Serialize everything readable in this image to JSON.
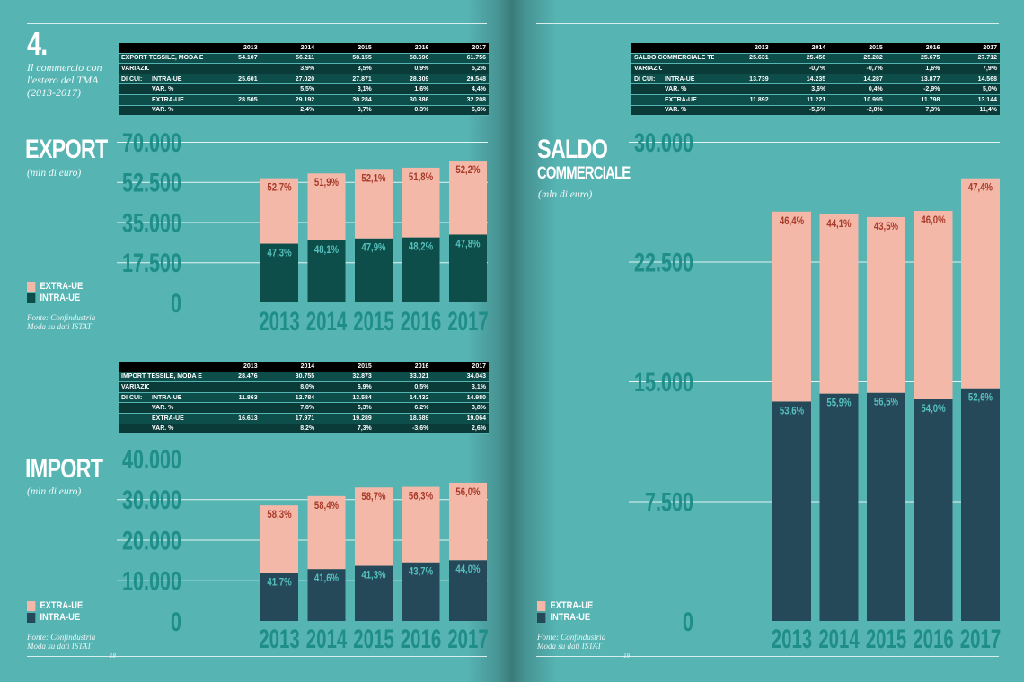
{
  "colors": {
    "extra": "#f4b8a8",
    "intra_export": "#0d4d4a",
    "intra_other": "#26495a",
    "tick": "#1f8e88",
    "pct_extra": "#a83a2a",
    "pct_intra": "#56c0bd"
  },
  "header": {
    "number": "4.",
    "intro": "Il commercio con l'estero del TMA (2013-2017)"
  },
  "page_numbers": {
    "left": "18",
    "right": "19"
  },
  "export": {
    "title": "EXPORT",
    "subtitle": "(mln di euro)",
    "legend": [
      "EXTRA-UE",
      "INTRA-UE"
    ],
    "source": [
      "Fonte: Confindustria",
      "Moda su dati ISTAT"
    ],
    "table": {
      "years": [
        "2013",
        "2014",
        "2015",
        "2016",
        "2017"
      ],
      "rows": [
        {
          "c1": "EXPORT TESSILE, MODA E ACCESSORIO",
          "c2": "",
          "values": [
            "54.107",
            "56.211",
            "58.155",
            "58.696",
            "61.756"
          ]
        },
        {
          "c1": "VARIAZIONE %",
          "c2": "",
          "values": [
            "",
            "3,9%",
            "3,5%",
            "0,9%",
            "5,2%"
          ]
        },
        {
          "c1": "DI CUI:",
          "c2": "INTRA-UE",
          "values": [
            "25.601",
            "27.020",
            "27.871",
            "28.309",
            "29.548"
          ]
        },
        {
          "c1": "",
          "c2": "VAR. %",
          "values": [
            "",
            "5,5%",
            "3,1%",
            "1,6%",
            "4,4%"
          ]
        },
        {
          "c1": "",
          "c2": "EXTRA-UE",
          "values": [
            "28.505",
            "29.192",
            "30.284",
            "30.386",
            "32.208"
          ]
        },
        {
          "c1": "",
          "c2": "VAR. %",
          "values": [
            "",
            "2,4%",
            "3,7%",
            "0,3%",
            "6,0%"
          ]
        }
      ]
    }
  },
  "import": {
    "title": "IMPORT",
    "subtitle": "(mln di euro)",
    "legend": [
      "EXTRA-UE",
      "INTRA-UE"
    ],
    "source": [
      "Fonte: Confindustria",
      "Moda su dati ISTAT"
    ],
    "table": {
      "years": [
        "2013",
        "2014",
        "2015",
        "2016",
        "2017"
      ],
      "rows": [
        {
          "c1": "IMPORT TESSILE, MODA E ACCESSORIO",
          "c2": "",
          "values": [
            "28.476",
            "30.755",
            "32.873",
            "33.021",
            "34.043"
          ]
        },
        {
          "c1": "VARIAZIONE %",
          "c2": "",
          "values": [
            "",
            "8,0%",
            "6,9%",
            "0,5%",
            "3,1%"
          ]
        },
        {
          "c1": "DI CUI:",
          "c2": "INTRA-UE",
          "values": [
            "11.863",
            "12.784",
            "13.584",
            "14.432",
            "14.980"
          ]
        },
        {
          "c1": "",
          "c2": "VAR. %",
          "values": [
            "",
            "7,8%",
            "6,3%",
            "6,2%",
            "3,8%"
          ]
        },
        {
          "c1": "",
          "c2": "EXTRA-UE",
          "values": [
            "16.613",
            "17.971",
            "19.289",
            "18.589",
            "19.064"
          ]
        },
        {
          "c1": "",
          "c2": "VAR. %",
          "values": [
            "",
            "8,2%",
            "7,3%",
            "-3,6%",
            "2,6%"
          ]
        }
      ]
    }
  },
  "saldo": {
    "title_line1": "SALDO",
    "title_line2": "COMMERCIALE",
    "subtitle": "(mln di euro)",
    "legend": [
      "EXTRA-UE",
      "INTRA-UE"
    ],
    "source": [
      "Fonte: Confindustria",
      "Moda su dati ISTAT"
    ],
    "table": {
      "years": [
        "2013",
        "2014",
        "2015",
        "2016",
        "2017"
      ],
      "rows": [
        {
          "c1": "SALDO COMMERCIALE TESSILE, MODA E ACCESSORIO",
          "c2": "",
          "values": [
            "25.631",
            "25.456",
            "25.282",
            "25.675",
            "27.712"
          ]
        },
        {
          "c1": "VARIAZIONE %",
          "c2": "",
          "values": [
            "",
            "-0,7%",
            "-0,7%",
            "1,6%",
            "7,9%"
          ]
        },
        {
          "c1": "DI CUI:",
          "c2": "INTRA-UE",
          "values": [
            "13.739",
            "14.235",
            "14.287",
            "13.877",
            "14.568"
          ]
        },
        {
          "c1": "",
          "c2": "VAR. %",
          "values": [
            "",
            "3,6%",
            "0,4%",
            "-2,9%",
            "5,0%"
          ]
        },
        {
          "c1": "",
          "c2": "EXTRA-UE",
          "values": [
            "11.892",
            "11.221",
            "10.995",
            "11.798",
            "13.144"
          ]
        },
        {
          "c1": "",
          "c2": "VAR. %",
          "values": [
            "",
            "-5,6%",
            "-2,0%",
            "7,3%",
            "11,4%"
          ]
        }
      ]
    }
  },
  "chart_data": [
    {
      "type": "bar",
      "stacked": true,
      "categories": [
        "2013",
        "2014",
        "2015",
        "2016",
        "2017"
      ],
      "ylim": [
        0,
        70000
      ],
      "yticks": [
        "0",
        "17.500",
        "35.000",
        "52.500",
        "70.000"
      ],
      "yticks_values": [
        0,
        17500,
        35000,
        52500,
        70000
      ],
      "series": [
        {
          "name": "INTRA-UE",
          "values": [
            25601,
            27020,
            27871,
            28309,
            29548
          ],
          "labels": [
            "47,3%",
            "48,1%",
            "47,9%",
            "48,2%",
            "47,8%"
          ]
        },
        {
          "name": "EXTRA-UE",
          "values": [
            28505,
            29192,
            30284,
            30386,
            32208
          ],
          "labels": [
            "52,7%",
            "51,9%",
            "52,1%",
            "51,8%",
            "52,2%"
          ]
        }
      ]
    },
    {
      "type": "bar",
      "stacked": true,
      "categories": [
        "2013",
        "2014",
        "2015",
        "2016",
        "2017"
      ],
      "ylim": [
        0,
        40000
      ],
      "yticks": [
        "0",
        "10.000",
        "20.000",
        "30.000",
        "40.000"
      ],
      "yticks_values": [
        0,
        10000,
        20000,
        30000,
        40000
      ],
      "series": [
        {
          "name": "INTRA-UE",
          "values": [
            11863,
            12784,
            13584,
            14432,
            14980
          ],
          "labels": [
            "41,7%",
            "41,6%",
            "41,3%",
            "43,7%",
            "44,0%"
          ]
        },
        {
          "name": "EXTRA-UE",
          "values": [
            16613,
            17971,
            19289,
            18589,
            19064
          ],
          "labels": [
            "58,3%",
            "58,4%",
            "58,7%",
            "56,3%",
            "56,0%"
          ]
        }
      ]
    },
    {
      "type": "bar",
      "stacked": true,
      "categories": [
        "2013",
        "2014",
        "2015",
        "2016",
        "2017"
      ],
      "ylim": [
        0,
        30000
      ],
      "yticks": [
        "0",
        "7.500",
        "15.000",
        "22.500",
        "30.000"
      ],
      "yticks_values": [
        0,
        7500,
        15000,
        22500,
        30000
      ],
      "series": [
        {
          "name": "INTRA-UE",
          "values": [
            13739,
            14235,
            14287,
            13877,
            14568
          ],
          "labels": [
            "53,6%",
            "55,9%",
            "56,5%",
            "54,0%",
            "52,6%"
          ]
        },
        {
          "name": "EXTRA-UE",
          "values": [
            11892,
            11221,
            10995,
            11798,
            13144
          ],
          "labels": [
            "46,4%",
            "44,1%",
            "43,5%",
            "46,0%",
            "47,4%"
          ]
        }
      ]
    }
  ]
}
